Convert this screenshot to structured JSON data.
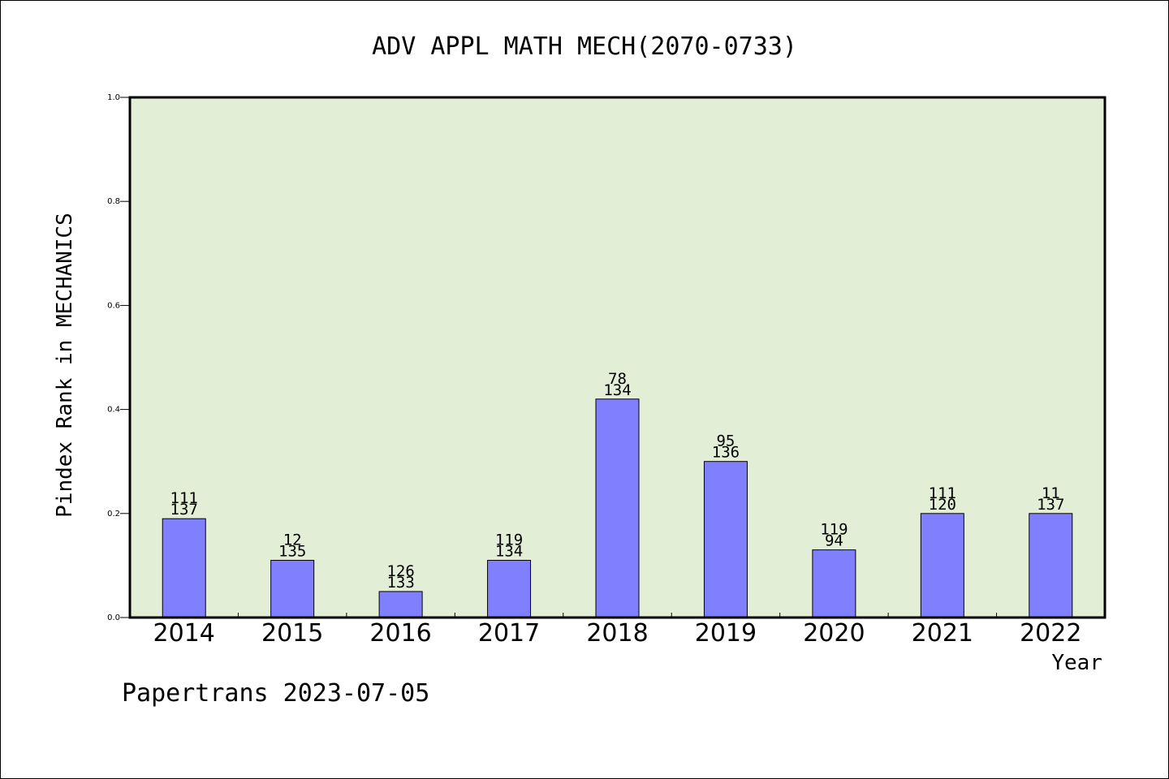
{
  "chart_data": {
    "type": "bar",
    "title": "ADV APPL MATH MECH(2070-0733)",
    "xlabel": "Year",
    "ylabel": "Pindex Rank in MECHANICS",
    "categories": [
      "2014",
      "2015",
      "2016",
      "2017",
      "2018",
      "2019",
      "2020",
      "2021",
      "2022"
    ],
    "values": [
      0.19,
      0.11,
      0.05,
      0.11,
      0.42,
      0.3,
      0.13,
      0.2,
      0.2
    ],
    "labels_top": [
      "111",
      "12",
      "126",
      "119",
      "78",
      "95",
      "119",
      "111",
      "11"
    ],
    "labels_bottom": [
      "137",
      "135",
      "133",
      "134",
      "134",
      "136",
      "94",
      "120",
      "137"
    ],
    "ylim": [
      0,
      1.0
    ],
    "yticks": [
      "0.0",
      "0.2",
      "0.4",
      "0.6",
      "0.8",
      "1.0"
    ],
    "grid": false,
    "plot_background": "#e2efd6",
    "bar_color": "#8080ff"
  },
  "footer": "Papertrans 2023-07-05"
}
